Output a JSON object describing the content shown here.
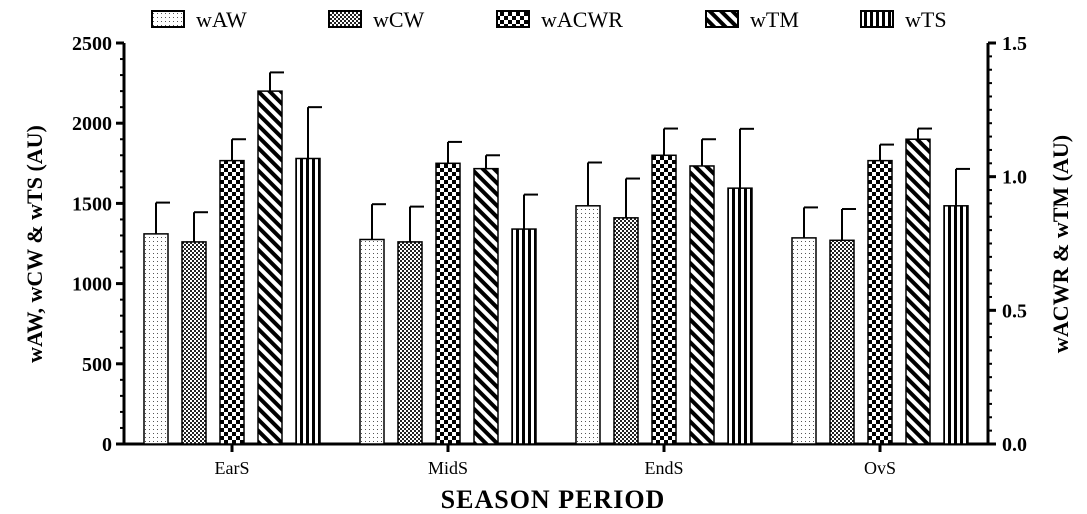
{
  "chart_data": {
    "type": "bar",
    "xlabel": "SEASON PERIOD",
    "ylabel_left": "wAW, wCW & wTS (AU)",
    "ylabel_right": "wACWR & wTM (AU)",
    "categories": [
      "EarS",
      "MidS",
      "EndS",
      "OvS"
    ],
    "ylim_left": [
      0,
      2500
    ],
    "yticks_left": [
      "0",
      "500",
      "1000",
      "1500",
      "2000",
      "2500"
    ],
    "ylim_right": [
      0,
      1.5
    ],
    "yticks_right": [
      "0.0",
      "0.5",
      "1.0",
      "1.5"
    ],
    "legend_position": "top",
    "series": [
      {
        "name": "wAW",
        "axis": "left",
        "pattern": "dots",
        "values": [
          1310,
          1275,
          1485,
          1285
        ],
        "errors": [
          195,
          220,
          270,
          190
        ]
      },
      {
        "name": "wCW",
        "axis": "left",
        "pattern": "checker-small",
        "values": [
          1260,
          1260,
          1410,
          1270
        ],
        "errors": [
          185,
          220,
          245,
          195
        ]
      },
      {
        "name": "wACWR",
        "axis": "right",
        "pattern": "checker-large",
        "values": [
          1.06,
          1.05,
          1.08,
          1.06
        ],
        "errors": [
          0.08,
          0.08,
          0.1,
          0.06
        ]
      },
      {
        "name": "wTM",
        "axis": "right",
        "pattern": "diagonal",
        "values": [
          1.32,
          1.03,
          1.04,
          1.14
        ],
        "errors": [
          0.07,
          0.05,
          0.1,
          0.04
        ]
      },
      {
        "name": "wTS",
        "axis": "left",
        "pattern": "vertical",
        "values": [
          1780,
          1340,
          1595,
          1485
        ],
        "errors": [
          320,
          215,
          370,
          230
        ]
      }
    ]
  }
}
